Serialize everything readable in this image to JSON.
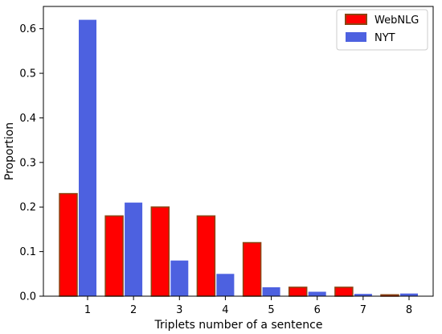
{
  "chart_data": {
    "type": "bar",
    "xlabel": "Triplets number of a sentence",
    "ylabel": "Proportion",
    "categories": [
      "1",
      "2",
      "3",
      "4",
      "5",
      "6",
      "7",
      "8"
    ],
    "ylim": [
      0,
      0.65
    ],
    "yticks": [
      "0.0",
      "0.1",
      "0.2",
      "0.3",
      "0.4",
      "0.5",
      "0.6"
    ],
    "grid": false,
    "legend_position": "top-right",
    "series": [
      {
        "name": "WebNLG",
        "color": "#ff0000",
        "edge_color": "#8b4513",
        "values": [
          0.23,
          0.18,
          0.2,
          0.18,
          0.12,
          0.02,
          0.02,
          0.003
        ]
      },
      {
        "name": "NYT",
        "color": "#4d61e0",
        "edge_color": "#4d61e0",
        "values": [
          0.62,
          0.21,
          0.08,
          0.05,
          0.02,
          0.01,
          0.005,
          0.006
        ]
      }
    ]
  }
}
